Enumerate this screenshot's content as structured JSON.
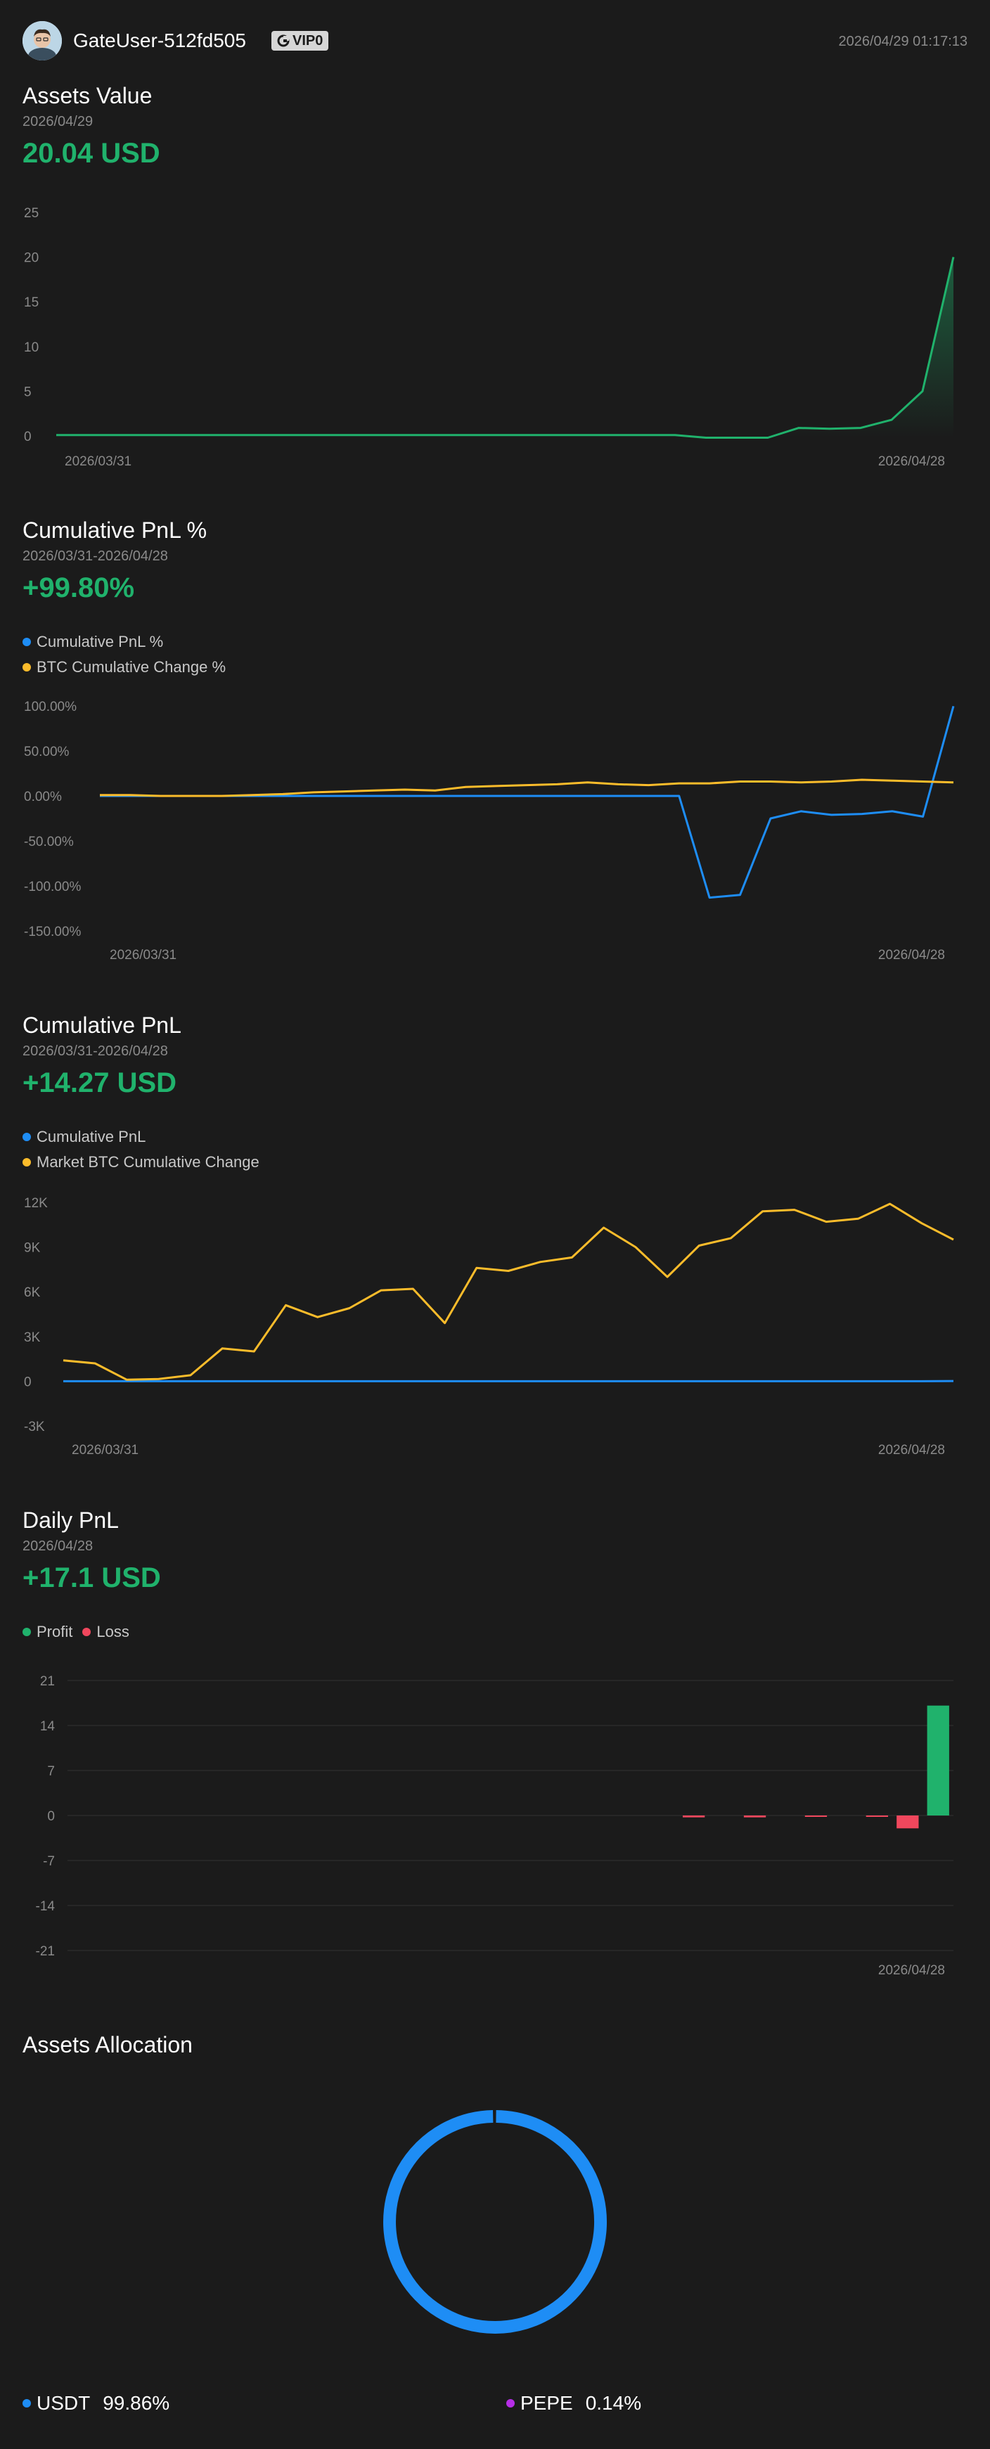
{
  "header": {
    "username": "GateUser-512fd505",
    "vip_label": "VIP0",
    "timestamp": "2026/04/29 01:17:13"
  },
  "colors": {
    "positive": "#20b26c",
    "negative": "#f0475d",
    "blue": "#1e8df5",
    "orange": "#fbbc2b",
    "purple": "#b62ee6"
  },
  "assets_value": {
    "title": "Assets Value",
    "date": "2026/04/29",
    "value": "20.04 USD",
    "chart_data": {
      "type": "area",
      "title": "Assets Value",
      "x_start_label": "2026/03/31",
      "x_end_label": "2026/04/28",
      "y_ticks": [
        "25",
        "20",
        "15",
        "10",
        "5",
        "0"
      ],
      "ylim": [
        0,
        25
      ],
      "series": [
        {
          "name": "Assets Value",
          "values": [
            0.1,
            0.1,
            0.1,
            0.1,
            0.1,
            0.1,
            0.1,
            0.1,
            0.1,
            0.1,
            0.1,
            0.1,
            0.1,
            0.1,
            0.1,
            0.1,
            0.1,
            0.1,
            0.1,
            0.1,
            0.1,
            -0.2,
            -0.2,
            -0.2,
            0.9,
            0.8,
            0.9,
            1.8,
            5.0,
            20.0
          ]
        }
      ]
    }
  },
  "cum_pnl_pct": {
    "title": "Cumulative PnL %",
    "date": "2026/03/31-2026/04/28",
    "value": "+99.80%",
    "legend": [
      "Cumulative PnL %",
      "BTC Cumulative Change %"
    ],
    "chart_data": {
      "type": "line",
      "title": "Cumulative PnL %",
      "x_start_label": "2026/03/31",
      "x_end_label": "2026/04/28",
      "y_ticks": [
        "100.00%",
        "50.00%",
        "0.00%",
        "-50.00%",
        "-100.00%",
        "-150.00%"
      ],
      "ylim": [
        -150,
        100
      ],
      "series": [
        {
          "name": "Cumulative PnL %",
          "values": [
            0,
            0,
            0,
            0,
            0,
            0,
            0,
            0,
            0,
            0,
            0,
            0,
            0,
            0,
            0,
            0,
            0,
            0,
            0,
            0,
            -113,
            -110,
            -25,
            -17,
            -21,
            -20,
            -17,
            -23,
            99.8
          ]
        },
        {
          "name": "BTC Cumulative Change %",
          "values": [
            1,
            1,
            0,
            0,
            0,
            1,
            2,
            4,
            5,
            6,
            7,
            6,
            10,
            11,
            12,
            13,
            15,
            13,
            12,
            14,
            14,
            16,
            16,
            15,
            16,
            18,
            17,
            16,
            15
          ]
        }
      ]
    }
  },
  "cum_pnl": {
    "title": "Cumulative PnL",
    "date": "2026/03/31-2026/04/28",
    "value": "+14.27 USD",
    "legend": [
      "Cumulative PnL",
      "Market BTC Cumulative Change"
    ],
    "chart_data": {
      "type": "line",
      "title": "Cumulative PnL",
      "x_start_label": "2026/03/31",
      "x_end_label": "2026/04/28",
      "y_ticks": [
        "12K",
        "9K",
        "6K",
        "3K",
        "0",
        "-3K"
      ],
      "ylim": [
        -3000,
        12000
      ],
      "series": [
        {
          "name": "Cumulative PnL",
          "values": [
            0,
            0,
            0,
            0,
            0,
            0,
            0,
            0,
            0,
            0,
            0,
            0,
            0,
            0,
            0,
            0,
            0,
            0,
            0,
            0,
            0,
            0,
            0,
            0,
            0,
            0,
            0,
            0,
            14
          ]
        },
        {
          "name": "Market BTC Cumulative Change",
          "values": [
            1400,
            1200,
            100,
            150,
            400,
            2200,
            2000,
            5100,
            4300,
            4900,
            6100,
            6200,
            3900,
            7600,
            7400,
            8000,
            8300,
            10300,
            9000,
            7000,
            9100,
            9600,
            11400,
            11500,
            10700,
            10900,
            11900,
            10600,
            9500
          ]
        }
      ]
    }
  },
  "daily_pnl": {
    "title": "Daily PnL",
    "date": "2026/04/28",
    "value": "+17.1 USD",
    "legend": [
      "Profit",
      "Loss"
    ],
    "chart_data": {
      "type": "bar",
      "title": "Daily PnL",
      "x_end_label": "2026/04/28",
      "y_ticks": [
        "21",
        "14",
        "7",
        "0",
        "-7",
        "-14",
        "-21"
      ],
      "ylim": [
        -21,
        21
      ],
      "values": [
        0,
        0,
        0,
        0,
        0,
        0,
        0,
        0,
        0,
        0,
        0,
        0,
        0,
        0,
        0,
        0,
        0,
        0,
        0,
        0,
        -0.3,
        0,
        -0.3,
        0,
        -0.2,
        0,
        -0.2,
        -2.0,
        17.1
      ]
    }
  },
  "allocation": {
    "title": "Assets Allocation",
    "chart_data": {
      "type": "pie",
      "title": "Assets Allocation",
      "slices": [
        {
          "name": "USDT",
          "value": 99.86,
          "label": "99.86%"
        },
        {
          "name": "PEPE",
          "value": 0.14,
          "label": "0.14%"
        }
      ]
    }
  }
}
